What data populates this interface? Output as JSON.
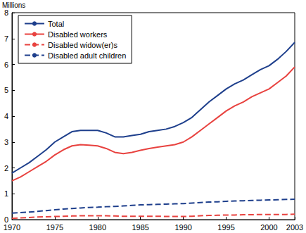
{
  "chart_data": {
    "type": "line",
    "y_label": "Millions",
    "x": [
      1970,
      1971,
      1972,
      1973,
      1974,
      1975,
      1976,
      1977,
      1978,
      1979,
      1980,
      1981,
      1982,
      1983,
      1984,
      1985,
      1986,
      1987,
      1988,
      1989,
      1990,
      1991,
      1992,
      1993,
      1994,
      1995,
      1996,
      1997,
      1998,
      1999,
      2000,
      2001,
      2002,
      2003
    ],
    "series": [
      {
        "name": "Total",
        "color": "#1e3f8c",
        "line_style": "solid",
        "values": [
          1.8,
          2.0,
          2.2,
          2.45,
          2.7,
          3.0,
          3.2,
          3.4,
          3.45,
          3.45,
          3.45,
          3.35,
          3.2,
          3.2,
          3.25,
          3.3,
          3.4,
          3.45,
          3.5,
          3.6,
          3.75,
          3.95,
          4.25,
          4.55,
          4.8,
          5.05,
          5.25,
          5.4,
          5.6,
          5.8,
          5.95,
          6.2,
          6.5,
          6.85
        ]
      },
      {
        "name": "Disabled workers",
        "color": "#e8423f",
        "line_style": "solid",
        "values": [
          1.5,
          1.65,
          1.85,
          2.05,
          2.25,
          2.5,
          2.7,
          2.85,
          2.9,
          2.88,
          2.85,
          2.75,
          2.6,
          2.55,
          2.6,
          2.68,
          2.75,
          2.8,
          2.85,
          2.9,
          3.0,
          3.2,
          3.45,
          3.7,
          3.95,
          4.2,
          4.4,
          4.55,
          4.75,
          4.9,
          5.05,
          5.3,
          5.55,
          5.9
        ]
      },
      {
        "name": "Disabled widow(er)s",
        "color": "#e8423f",
        "line_style": "dashed",
        "values": [
          0.05,
          0.07,
          0.08,
          0.1,
          0.11,
          0.12,
          0.13,
          0.14,
          0.15,
          0.15,
          0.15,
          0.15,
          0.14,
          0.13,
          0.13,
          0.13,
          0.13,
          0.13,
          0.12,
          0.12,
          0.12,
          0.13,
          0.15,
          0.16,
          0.17,
          0.18,
          0.18,
          0.19,
          0.19,
          0.2,
          0.2,
          0.2,
          0.2,
          0.21
        ]
      },
      {
        "name": "Disabled adult children",
        "color": "#1e3f8c",
        "line_style": "dashed",
        "values": [
          0.25,
          0.27,
          0.29,
          0.32,
          0.35,
          0.38,
          0.41,
          0.43,
          0.45,
          0.47,
          0.48,
          0.5,
          0.51,
          0.53,
          0.55,
          0.57,
          0.58,
          0.59,
          0.6,
          0.61,
          0.62,
          0.64,
          0.66,
          0.68,
          0.69,
          0.71,
          0.72,
          0.73,
          0.74,
          0.75,
          0.76,
          0.77,
          0.78,
          0.79
        ]
      }
    ],
    "xlim": [
      1970,
      2003
    ],
    "xticks": [
      1970,
      1975,
      1980,
      1985,
      1990,
      1995,
      2000,
      2003
    ],
    "ylim": [
      0,
      8
    ],
    "yticks": [
      0,
      1,
      2,
      3,
      4,
      5,
      6,
      7,
      8
    ],
    "grid": false,
    "legend": "upper left",
    "marker": "none"
  }
}
